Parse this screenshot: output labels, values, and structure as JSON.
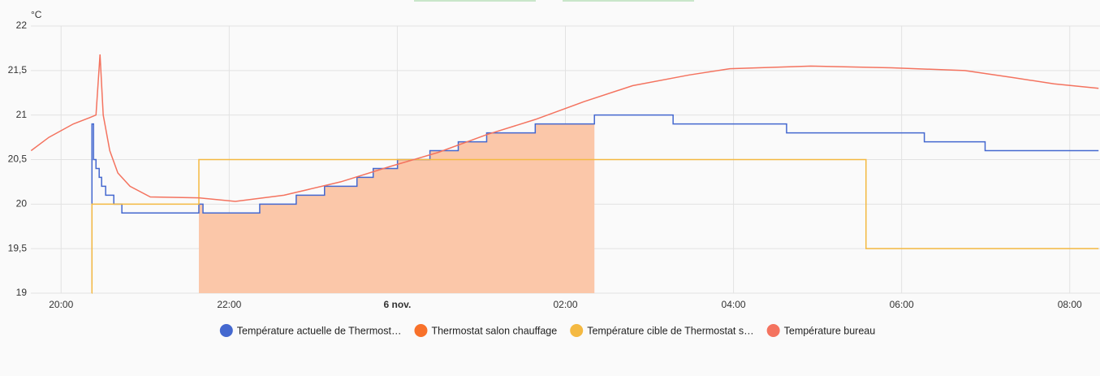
{
  "chart_data": {
    "type": "line",
    "y_label": "°C",
    "xlim": [
      -4.36,
      8.36
    ],
    "ylim": [
      19,
      22
    ],
    "xticks": [
      {
        "value": -4,
        "label": "20:00"
      },
      {
        "value": -2,
        "label": "22:00"
      },
      {
        "value": 0,
        "label": "6 nov."
      },
      {
        "value": 2,
        "label": "02:00"
      },
      {
        "value": 4,
        "label": "04:00"
      },
      {
        "value": 6,
        "label": "06:00"
      },
      {
        "value": 8,
        "label": "08:00"
      }
    ],
    "yticks": [
      19,
      {
        "value": 19.5,
        "label": "19,5"
      },
      20,
      {
        "value": 20.5,
        "label": "20,5"
      },
      21,
      {
        "value": 21.5,
        "label": "21,5"
      },
      22
    ],
    "grid": true,
    "series": [
      {
        "name": "Température actuelle de Thermost…",
        "color": "#4468cf",
        "style": "step",
        "x": [
          -3.634,
          -3.633,
          -3.614,
          -3.585,
          -3.547,
          -3.518,
          -3.47,
          -3.373,
          -3.277,
          -2.361,
          -2.312,
          -1.637,
          -1.203,
          -0.866,
          -0.48,
          -0.287,
          0.002,
          0.388,
          0.725,
          1.063,
          1.641,
          2.345,
          3.281,
          4.631,
          6.27,
          6.993,
          8.343
        ],
        "values": [
          19.1,
          20.9,
          20.5,
          20.4,
          20.3,
          20.2,
          20.1,
          20.0,
          19.9,
          20.0,
          19.9,
          20.0,
          20.1,
          20.2,
          20.3,
          20.4,
          20.5,
          20.6,
          20.7,
          20.8,
          20.9,
          21.0,
          20.9,
          20.8,
          20.7,
          20.6,
          20.6
        ]
      },
      {
        "name": "Thermostat salon chauffage",
        "color": "#f8712a",
        "fill": "#fbc7a9",
        "style": "area",
        "x": [
          -2.361,
          -2.312,
          -1.637,
          -1.203,
          -0.866,
          -0.48,
          -0.287,
          0.002,
          0.388,
          0.725,
          1.063,
          1.641,
          2.345
        ],
        "values": [
          20.0,
          19.9,
          20.0,
          20.1,
          20.2,
          20.3,
          20.4,
          20.5,
          20.6,
          20.7,
          20.8,
          20.9,
          20.9
        ]
      },
      {
        "name": "Température cible de Thermostat s…",
        "color": "#f4b942",
        "style": "step",
        "x": [
          -3.634,
          -3.633,
          -2.361,
          5.576,
          8.343
        ],
        "values": [
          19.0,
          20.0,
          20.5,
          19.5,
          19.5
        ]
      },
      {
        "name": "Température bureau",
        "color": "#f4735f",
        "style": "line",
        "x": [
          -4.357,
          -4.145,
          -3.855,
          -3.662,
          -3.585,
          -3.537,
          -3.499,
          -3.421,
          -3.325,
          -3.18,
          -2.939,
          -2.361,
          -1.927,
          -1.348,
          -0.673,
          -0.094,
          0.484,
          1.063,
          1.641,
          2.22,
          2.799,
          3.473,
          3.956,
          4.92,
          5.884,
          6.752,
          7.331,
          7.813,
          8.343
        ],
        "values": [
          20.6,
          20.75,
          20.9,
          20.97,
          21.0,
          21.68,
          21.0,
          20.6,
          20.35,
          20.2,
          20.08,
          20.07,
          20.03,
          20.1,
          20.25,
          20.42,
          20.58,
          20.78,
          20.95,
          21.15,
          21.33,
          21.45,
          21.52,
          21.55,
          21.53,
          21.5,
          21.42,
          21.35,
          21.3
        ]
      }
    ]
  }
}
